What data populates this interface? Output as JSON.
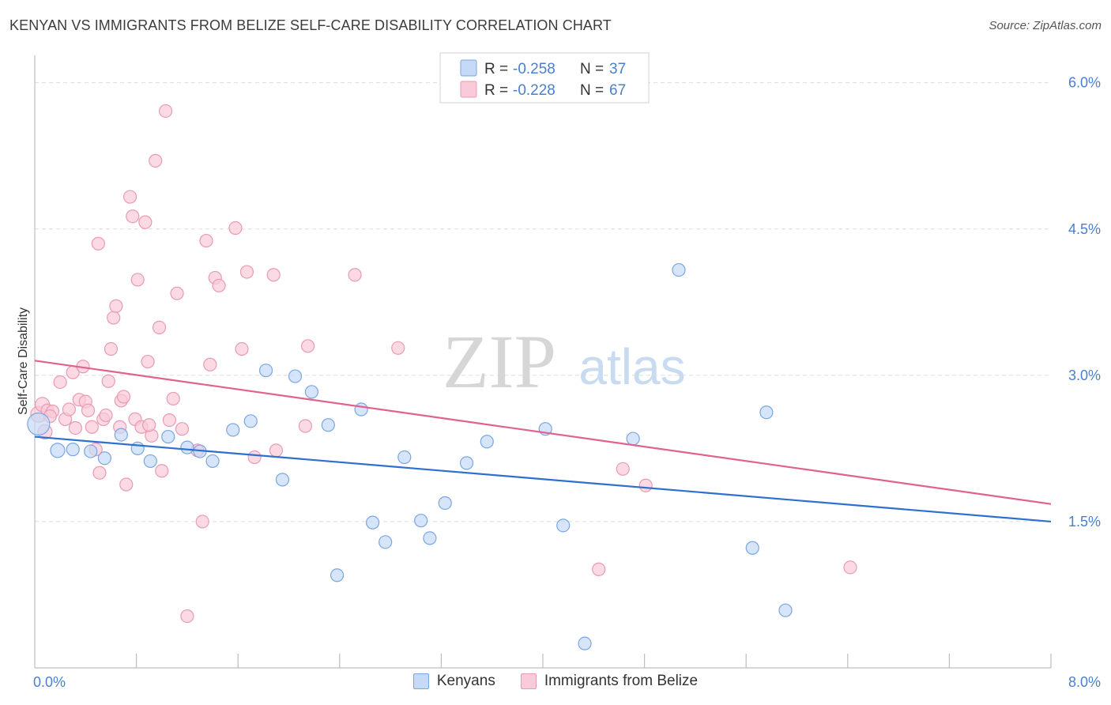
{
  "header": {
    "title": "KENYAN VS IMMIGRANTS FROM BELIZE SELF-CARE DISABILITY CORRELATION CHART",
    "source": "Source: ZipAtlas.com"
  },
  "watermark": {
    "zip": "ZIP",
    "atlas": "atlas"
  },
  "stats_legend": [
    {
      "r_label": "R =",
      "r_value": "-0.258",
      "n_label": "N =",
      "n_value": "37",
      "color": "#5b8fd6"
    },
    {
      "r_label": "R =",
      "r_value": "-0.228",
      "n_label": "N =",
      "n_value": "67",
      "color": "#e87ea1"
    }
  ],
  "colors": {
    "blue_fill": "#c5daf6",
    "blue_stroke": "#7aa6e0",
    "blue_line": "#2e6fd0",
    "pink_fill": "#f9cbd9",
    "pink_stroke": "#e99ab4",
    "pink_line": "#e0628d",
    "tick_text": "#4a7fd0",
    "grid": "#dcdcdc"
  },
  "chart_data": {
    "type": "scatter",
    "title": "KENYAN VS IMMIGRANTS FROM BELIZE SELF-CARE DISABILITY CORRELATION CHART",
    "ylabel": "Self-Care Disability",
    "xlabel": "",
    "xlim": [
      0,
      8
    ],
    "ylim": [
      0,
      6.2
    ],
    "x_tick_labels": [
      "0.0%",
      "8.0%"
    ],
    "y_ticks": [
      1.5,
      3.0,
      4.5,
      6.0
    ],
    "y_tick_labels": [
      "1.5%",
      "3.0%",
      "4.5%",
      "6.0%"
    ],
    "grid": true,
    "legend_position": "bottom-center",
    "series": [
      {
        "name": "Kenyans",
        "color": "#5b8fd6",
        "points": [
          [
            0.03,
            2.5,
            14
          ],
          [
            0.18,
            2.23,
            9
          ],
          [
            0.3,
            2.24,
            8
          ],
          [
            0.44,
            2.22,
            8
          ],
          [
            0.55,
            2.15,
            8
          ],
          [
            0.68,
            2.39,
            8
          ],
          [
            0.81,
            2.25,
            8
          ],
          [
            0.91,
            2.12,
            8
          ],
          [
            1.05,
            2.37,
            8
          ],
          [
            1.2,
            2.26,
            8
          ],
          [
            1.3,
            2.22,
            8
          ],
          [
            1.4,
            2.12,
            8
          ],
          [
            1.56,
            2.44,
            8
          ],
          [
            1.7,
            2.53,
            8
          ],
          [
            1.82,
            3.05,
            8
          ],
          [
            1.95,
            1.93,
            8
          ],
          [
            2.05,
            2.99,
            8
          ],
          [
            2.18,
            2.83,
            8
          ],
          [
            2.31,
            2.49,
            8
          ],
          [
            2.38,
            0.95,
            8
          ],
          [
            2.57,
            2.65,
            8
          ],
          [
            2.66,
            1.49,
            8
          ],
          [
            2.76,
            1.29,
            8
          ],
          [
            2.91,
            2.16,
            8
          ],
          [
            3.04,
            1.51,
            8
          ],
          [
            3.11,
            1.33,
            8
          ],
          [
            3.23,
            1.69,
            8
          ],
          [
            3.4,
            2.1,
            8
          ],
          [
            3.56,
            2.32,
            8
          ],
          [
            4.02,
            2.45,
            8
          ],
          [
            4.16,
            1.46,
            8
          ],
          [
            4.71,
            2.35,
            8
          ],
          [
            5.07,
            4.08,
            8
          ],
          [
            5.65,
            1.23,
            8
          ],
          [
            5.76,
            2.62,
            8
          ],
          [
            5.91,
            0.59,
            8
          ],
          [
            4.33,
            0.25,
            8
          ]
        ],
        "trend": [
          [
            0,
            2.37
          ],
          [
            8,
            1.5
          ]
        ]
      },
      {
        "name": "Immigrants from Belize",
        "color": "#e87ea1",
        "points": [
          [
            0.03,
            2.6,
            10
          ],
          [
            0.06,
            2.7,
            9
          ],
          [
            0.1,
            2.64,
            8
          ],
          [
            0.14,
            2.63,
            8
          ],
          [
            0.2,
            2.93,
            8
          ],
          [
            0.24,
            2.55,
            8
          ],
          [
            0.27,
            2.65,
            8
          ],
          [
            0.3,
            3.03,
            8
          ],
          [
            0.32,
            2.46,
            8
          ],
          [
            0.35,
            2.75,
            8
          ],
          [
            0.38,
            3.09,
            8
          ],
          [
            0.4,
            2.73,
            8
          ],
          [
            0.42,
            2.64,
            8
          ],
          [
            0.45,
            2.47,
            8
          ],
          [
            0.48,
            2.24,
            8
          ],
          [
            0.5,
            4.35,
            8
          ],
          [
            0.51,
            2.0,
            8
          ],
          [
            0.54,
            2.55,
            8
          ],
          [
            0.56,
            2.59,
            8
          ],
          [
            0.58,
            2.94,
            8
          ],
          [
            0.6,
            3.27,
            8
          ],
          [
            0.62,
            3.59,
            8
          ],
          [
            0.64,
            3.71,
            8
          ],
          [
            0.67,
            2.47,
            8
          ],
          [
            0.68,
            2.74,
            8
          ],
          [
            0.7,
            2.78,
            8
          ],
          [
            0.72,
            1.88,
            8
          ],
          [
            0.75,
            4.83,
            8
          ],
          [
            0.77,
            4.63,
            8
          ],
          [
            0.79,
            2.55,
            8
          ],
          [
            0.81,
            3.98,
            8
          ],
          [
            0.84,
            2.47,
            8
          ],
          [
            0.87,
            4.57,
            8
          ],
          [
            0.89,
            3.14,
            8
          ],
          [
            0.92,
            2.38,
            8
          ],
          [
            0.95,
            5.2,
            8
          ],
          [
            0.98,
            3.49,
            8
          ],
          [
            1.0,
            2.02,
            8
          ],
          [
            1.03,
            5.71,
            8
          ],
          [
            1.06,
            2.54,
            8
          ],
          [
            1.09,
            2.76,
            8
          ],
          [
            1.12,
            3.84,
            8
          ],
          [
            1.16,
            2.45,
            8
          ],
          [
            1.2,
            0.53,
            8
          ],
          [
            1.28,
            2.23,
            8
          ],
          [
            1.32,
            1.5,
            8
          ],
          [
            1.35,
            4.38,
            8
          ],
          [
            1.38,
            3.11,
            8
          ],
          [
            1.42,
            4.0,
            8
          ],
          [
            1.45,
            3.92,
            8
          ],
          [
            1.58,
            4.51,
            8
          ],
          [
            1.63,
            3.27,
            8
          ],
          [
            1.67,
            4.06,
            8
          ],
          [
            1.73,
            2.16,
            8
          ],
          [
            1.88,
            4.03,
            8
          ],
          [
            1.9,
            2.23,
            8
          ],
          [
            2.13,
            2.48,
            8
          ],
          [
            2.15,
            3.3,
            8
          ],
          [
            2.52,
            4.03,
            8
          ],
          [
            2.86,
            3.28,
            8
          ],
          [
            4.44,
            1.01,
            8
          ],
          [
            4.63,
            2.04,
            8
          ],
          [
            4.81,
            1.87,
            8
          ],
          [
            6.42,
            1.03,
            8
          ],
          [
            0.08,
            2.42,
            9
          ],
          [
            0.12,
            2.58,
            8
          ],
          [
            0.9,
            2.49,
            8
          ]
        ],
        "trend": [
          [
            0,
            3.15
          ],
          [
            8,
            1.68
          ]
        ]
      }
    ]
  },
  "bottom_legend": [
    {
      "label": "Kenyans"
    },
    {
      "label": "Immigrants from Belize"
    }
  ]
}
